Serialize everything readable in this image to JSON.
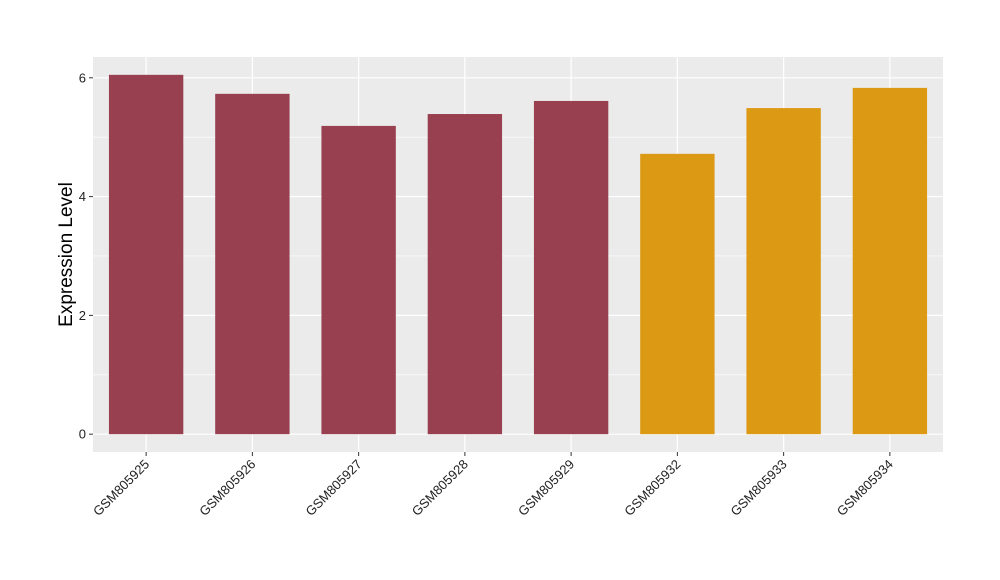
{
  "chart_data": {
    "type": "bar",
    "ylabel": "Expression Level",
    "xlabel": "",
    "ylim": [
      -0.3,
      6.35
    ],
    "yticks": [
      0,
      2,
      4,
      6
    ],
    "grid": true,
    "legend": "none",
    "categories": [
      "GSM805925",
      "GSM805926",
      "GSM805927",
      "GSM805928",
      "GSM805929",
      "GSM805932",
      "GSM805933",
      "GSM805934"
    ],
    "values": [
      6.05,
      5.73,
      5.19,
      5.39,
      5.61,
      4.72,
      5.49,
      5.83
    ],
    "bar_colors": [
      "#98404F",
      "#98404F",
      "#98404F",
      "#98404F",
      "#98404F",
      "#DC9914",
      "#DC9914",
      "#DC9914"
    ],
    "panel_color": "#EBEBEB",
    "grid_color": "#FFFFFF"
  }
}
